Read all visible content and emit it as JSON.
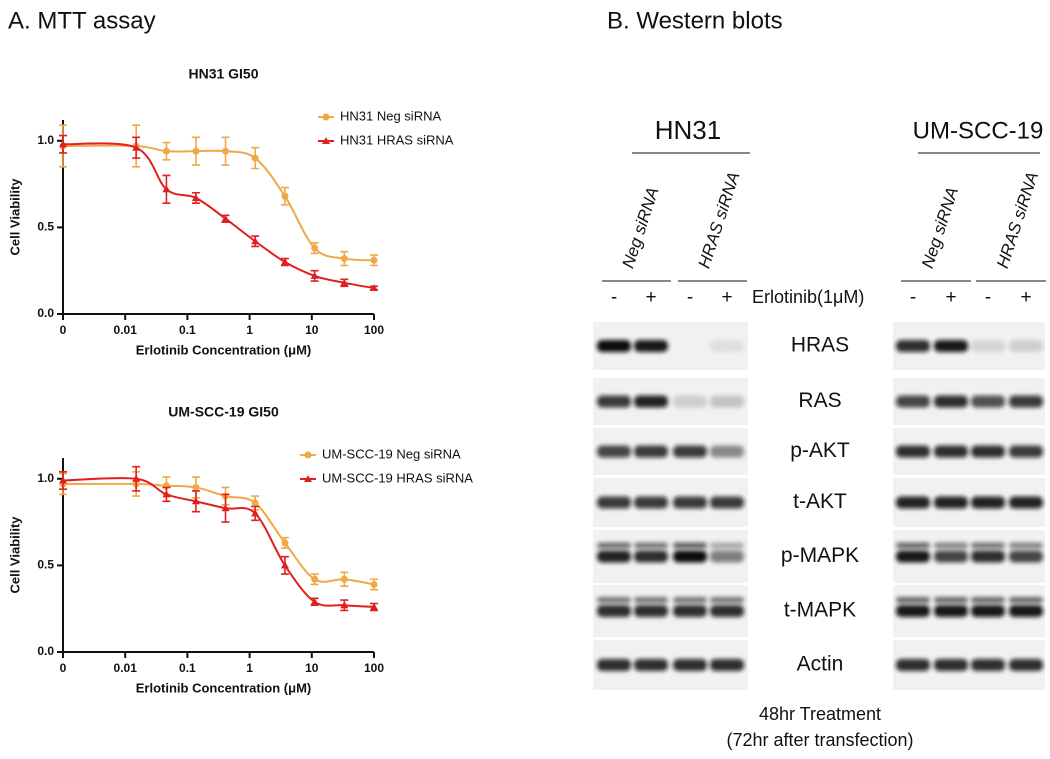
{
  "panel_a": {
    "title": "A. MTT assay"
  },
  "chart_data": [
    {
      "type": "line",
      "title": "HN31 GI50",
      "xlabel": "Erlotinib Concentration (μM)",
      "ylabel": "Cell Viability",
      "xscale": "log",
      "x": [
        0,
        0.015,
        0.046,
        0.137,
        0.41,
        1.23,
        3.7,
        11.1,
        33.3,
        100
      ],
      "xlim": [
        0,
        100
      ],
      "xticks": [
        0,
        0.01,
        0.1,
        1,
        10,
        100
      ],
      "ylim": [
        0,
        1.12
      ],
      "yticks": [
        {
          "value": 0,
          "label": "0.0"
        },
        {
          "value": 0.5,
          "label": "0.5"
        },
        {
          "value": 1,
          "label": "1.0"
        }
      ],
      "legend": "upper right",
      "series": [
        {
          "name": "HN31 Neg siRNA",
          "color": "#f0a848",
          "marker": "circle",
          "values": [
            0.97,
            0.97,
            0.94,
            0.94,
            0.94,
            0.9,
            0.68,
            0.38,
            0.32,
            0.31
          ],
          "errors": [
            0.12,
            0.12,
            0.05,
            0.08,
            0.08,
            0.06,
            0.05,
            0.03,
            0.04,
            0.03
          ]
        },
        {
          "name": "HN31 HRAS siRNA",
          "color": "#e02020",
          "marker": "triangle",
          "values": [
            0.98,
            0.96,
            0.72,
            0.67,
            0.55,
            0.42,
            0.3,
            0.22,
            0.18,
            0.15
          ],
          "errors": [
            0.05,
            0.06,
            0.08,
            0.03,
            0.02,
            0.03,
            0.02,
            0.03,
            0.02,
            0.01
          ]
        }
      ]
    },
    {
      "type": "line",
      "title": "UM-SCC-19 GI50",
      "xlabel": "Erlotinib Concentration (μM)",
      "ylabel": "Cell Viability",
      "xscale": "log",
      "x": [
        0,
        0.015,
        0.046,
        0.137,
        0.41,
        1.23,
        3.7,
        11.1,
        33.3,
        100
      ],
      "xlim": [
        0,
        100
      ],
      "xticks": [
        0,
        0.01,
        0.1,
        1,
        10,
        100
      ],
      "ylim": [
        0,
        1.12
      ],
      "yticks": [
        {
          "value": 0,
          "label": "0.0"
        },
        {
          "value": 0.5,
          "label": "0.5"
        },
        {
          "value": 1,
          "label": "1.0"
        }
      ],
      "legend": "upper right",
      "series": [
        {
          "name": "UM-SCC-19 Neg siRNA",
          "color": "#f0a848",
          "marker": "circle",
          "values": [
            0.97,
            0.97,
            0.96,
            0.95,
            0.9,
            0.86,
            0.63,
            0.42,
            0.42,
            0.39
          ],
          "errors": [
            0.06,
            0.07,
            0.05,
            0.06,
            0.05,
            0.04,
            0.03,
            0.03,
            0.04,
            0.03
          ]
        },
        {
          "name": "UM-SCC-19 HRAS siRNA",
          "color": "#e02020",
          "marker": "triangle",
          "values": [
            0.99,
            1.0,
            0.91,
            0.87,
            0.83,
            0.8,
            0.5,
            0.29,
            0.27,
            0.26
          ],
          "errors": [
            0.05,
            0.07,
            0.04,
            0.06,
            0.08,
            0.04,
            0.05,
            0.02,
            0.03,
            0.02
          ]
        }
      ]
    }
  ],
  "panel_b": {
    "title": "B. Western blots",
    "cell_lines": [
      {
        "name": "HN31",
        "groups": [
          "Neg siRNA",
          "HRAS siRNA"
        ]
      },
      {
        "name": "UM-SCC-19",
        "groups": [
          "Neg siRNA",
          "HRAS siRNA"
        ]
      }
    ],
    "treatment_signs": [
      "-",
      "+"
    ],
    "treatment_label": "Erlotinib(1μM)",
    "proteins": [
      "HRAS",
      "RAS",
      "p-AKT",
      "t-AKT",
      "p-MAPK",
      "t-MAPK",
      "Actin"
    ],
    "footer": [
      "48hr Treatment",
      "(72hr after transfection)"
    ]
  }
}
